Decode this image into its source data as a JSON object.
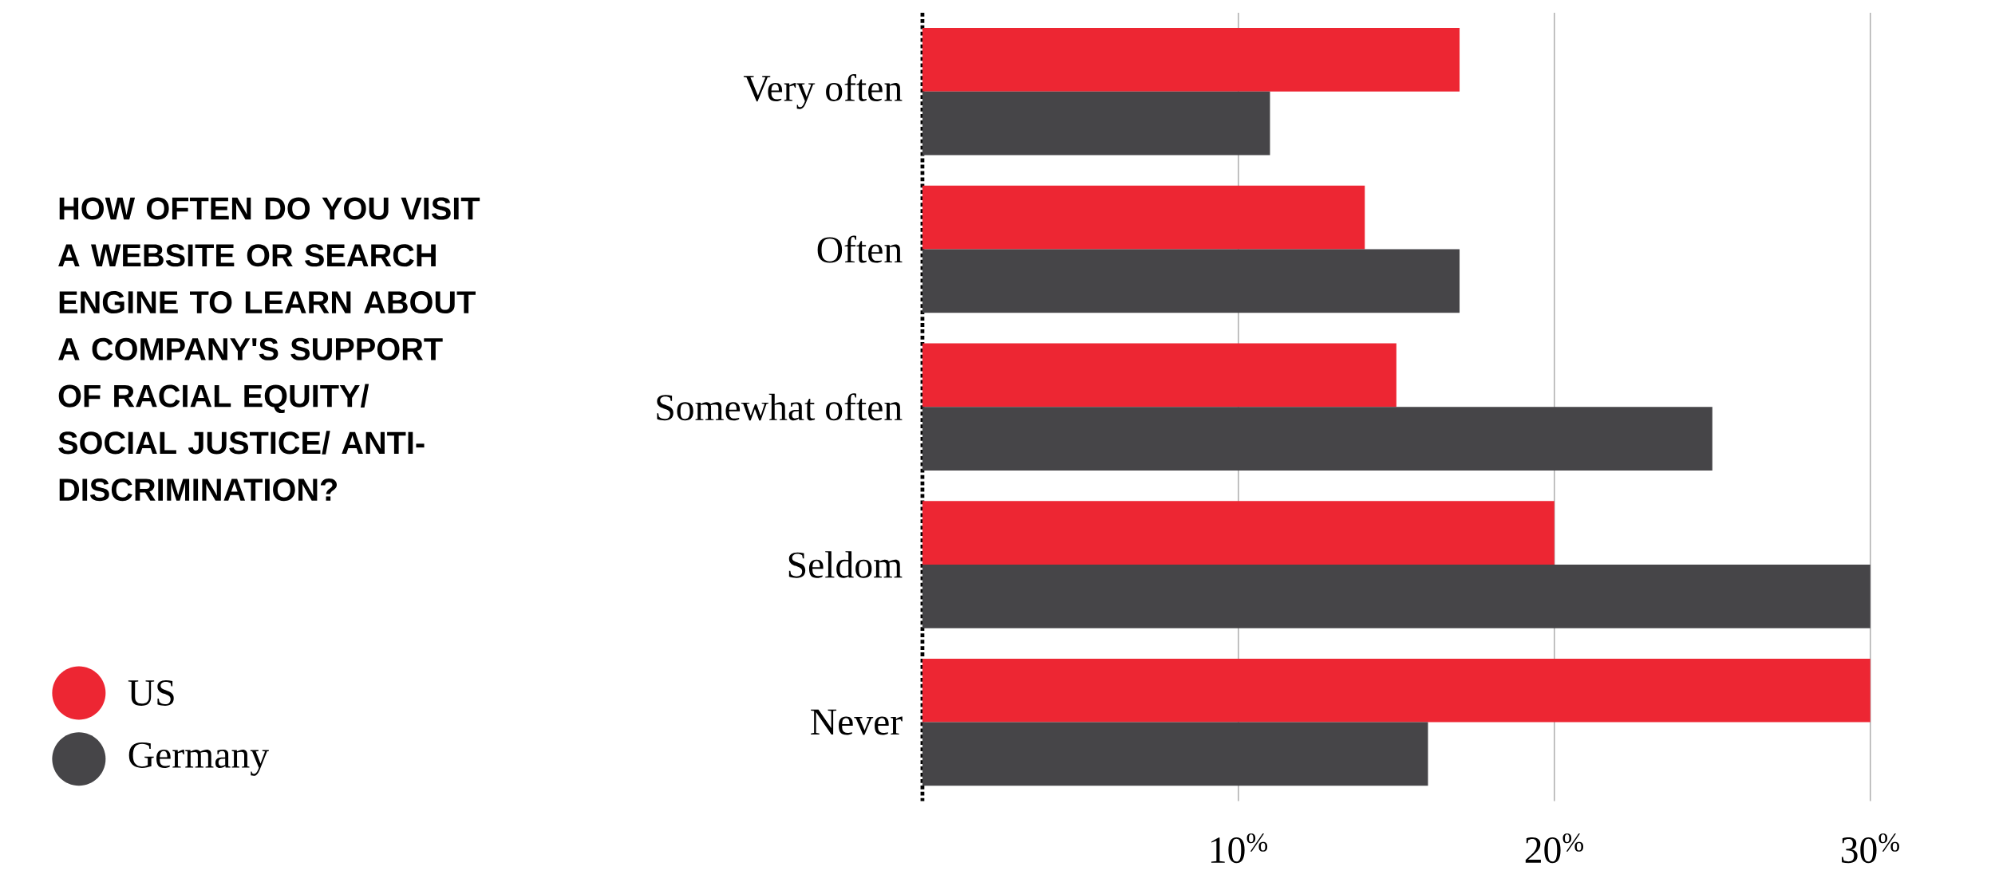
{
  "chart_data": {
    "type": "bar",
    "orientation": "horizontal",
    "title": "HOW OFTEN DO YOU VISIT A WEBSITE OR SEARCH ENGINE TO LEARN ABOUT A COMPANY'S SUPPORT OF RACIAL EQUITY/ SOCIAL JUSTICE/ ANTI-DISCRIMINATION?",
    "categories": [
      "Very often",
      "Often",
      "Somewhat often",
      "Seldom",
      "Never"
    ],
    "series": [
      {
        "name": "US",
        "color": "#ed2633",
        "values": [
          17,
          14,
          15,
          20,
          30
        ]
      },
      {
        "name": "Germany",
        "color": "#464548",
        "values": [
          11,
          17,
          25,
          30,
          16
        ]
      }
    ],
    "xlim": [
      0,
      30
    ],
    "xticks": [
      {
        "value": 10,
        "label": "10$^{%}$"
      },
      {
        "value": 20,
        "label": "20$^{%}$"
      },
      {
        "value": 30,
        "label": "30$^{%}$"
      }
    ],
    "grid": "x",
    "legend": "left"
  }
}
